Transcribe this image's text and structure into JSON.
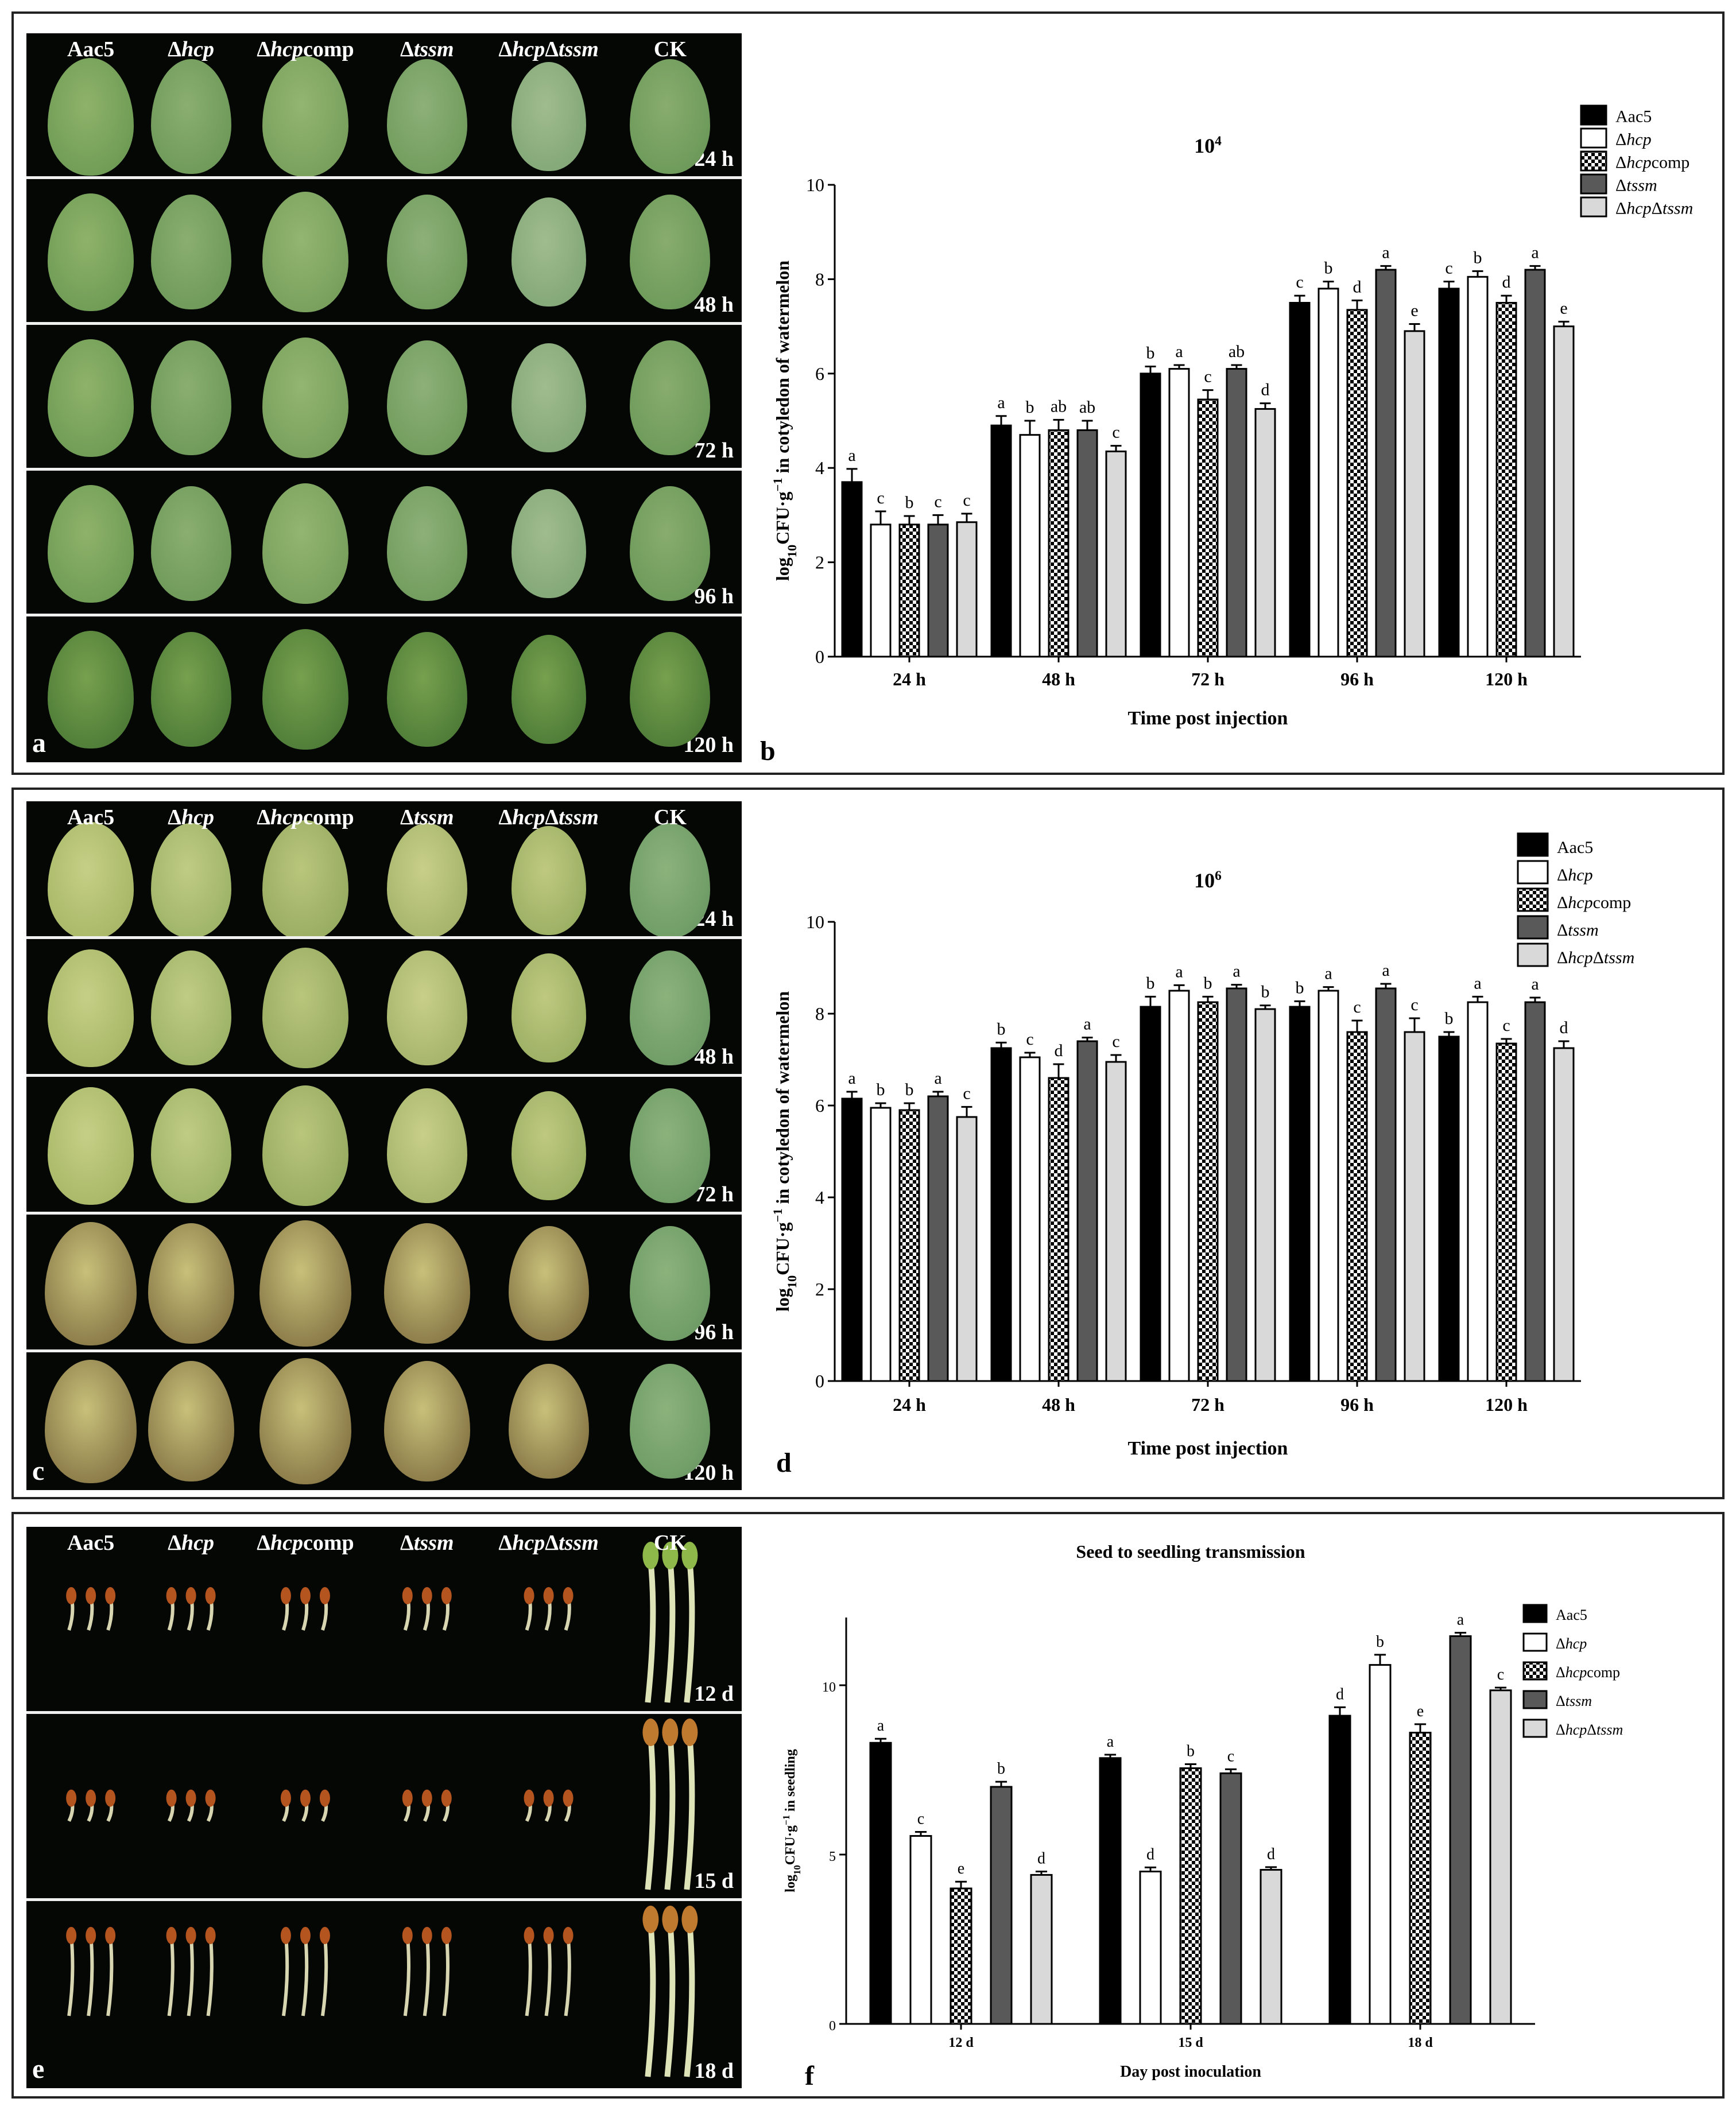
{
  "colors": {
    "aac5": "#000000",
    "hcp": "#ffffff",
    "hcpcomp": "#ffffff",
    "tssm": "#595959",
    "hcptssm": "#d9d9d9",
    "photo_bg": "#050705"
  },
  "strains": [
    {
      "prefix": "Aac5",
      "italic": "",
      "suffix": ""
    },
    {
      "prefix": "Δ",
      "italic": "hcp",
      "suffix": ""
    },
    {
      "prefix": "Δ",
      "italic": "hcp",
      "suffix": "comp"
    },
    {
      "prefix": "Δ",
      "italic": "tssm",
      "suffix": ""
    },
    {
      "prefix": "Δ",
      "italic": "hcp",
      "suffix": "Δ",
      "italic2": "tssm"
    },
    {
      "prefix": "CK",
      "italic": "",
      "suffix": ""
    }
  ],
  "panels": {
    "a": {
      "letter": "a",
      "times": [
        "24 h",
        "48 h",
        "72 h",
        "96 h",
        "120 h"
      ]
    },
    "c": {
      "letter": "c",
      "times": [
        "24 h",
        "48 h",
        "72 h",
        "96 h",
        "120 h"
      ]
    },
    "e": {
      "letter": "e",
      "times": [
        "12 d",
        "15 d",
        "18 d"
      ]
    }
  },
  "chart_data": [
    {
      "panel": "b",
      "type": "bar",
      "title": "10",
      "title_sup": "4",
      "xlabel": "Time post injection",
      "ylabel": "log10CFU·g−1 in cotyledon of watermelon",
      "ylim": [
        0,
        10
      ],
      "yticks": [
        0,
        2,
        4,
        6,
        8,
        10
      ],
      "categories": [
        "24 h",
        "48 h",
        "72 h",
        "96 h",
        "120 h"
      ],
      "series": [
        {
          "name": "Aac5",
          "values": [
            3.7,
            4.9,
            6.0,
            7.5,
            7.8
          ],
          "err": [
            0.28,
            0.2,
            0.15,
            0.15,
            0.15
          ],
          "letters": [
            "a",
            "a",
            "b",
            "c",
            "c"
          ]
        },
        {
          "name": "Δhcp",
          "values": [
            2.8,
            4.7,
            6.1,
            7.8,
            8.05
          ],
          "err": [
            0.28,
            0.3,
            0.08,
            0.15,
            0.12
          ],
          "letters": [
            "c",
            "b",
            "a",
            "b",
            "b"
          ]
        },
        {
          "name": "Δhcpcomp",
          "values": [
            2.8,
            4.8,
            5.45,
            7.35,
            7.5
          ],
          "err": [
            0.18,
            0.22,
            0.2,
            0.2,
            0.15
          ],
          "letters": [
            "b",
            "ab",
            "c",
            "d",
            "d"
          ]
        },
        {
          "name": "Δtssm",
          "values": [
            2.8,
            4.8,
            6.1,
            8.2,
            8.2
          ],
          "err": [
            0.2,
            0.2,
            0.08,
            0.08,
            0.08
          ],
          "letters": [
            "c",
            "ab",
            "ab",
            "a",
            "a"
          ]
        },
        {
          "name": "ΔhcpΔtssm",
          "values": [
            2.85,
            4.35,
            5.25,
            6.9,
            7.0
          ],
          "err": [
            0.18,
            0.12,
            0.12,
            0.15,
            0.1
          ],
          "letters": [
            "c",
            "c",
            "d",
            "e",
            "e"
          ]
        }
      ]
    },
    {
      "panel": "d",
      "type": "bar",
      "title": "10",
      "title_sup": "6",
      "xlabel": "Time post injection",
      "ylabel": "log10CFU·g−1 in cotyledon of watermelon",
      "ylim": [
        0,
        10
      ],
      "yticks": [
        0,
        2,
        4,
        6,
        8,
        10
      ],
      "categories": [
        "24 h",
        "48 h",
        "72 h",
        "96 h",
        "120 h"
      ],
      "series": [
        {
          "name": "Aac5",
          "values": [
            6.15,
            7.25,
            8.15,
            8.15,
            7.5
          ],
          "err": [
            0.15,
            0.12,
            0.22,
            0.12,
            0.1
          ],
          "letters": [
            "a",
            "b",
            "b",
            "b",
            "b"
          ]
        },
        {
          "name": "Δhcp",
          "values": [
            5.95,
            7.05,
            8.5,
            8.5,
            8.25
          ],
          "err": [
            0.1,
            0.1,
            0.12,
            0.08,
            0.12
          ],
          "letters": [
            "b",
            "c",
            "a",
            "a",
            "a"
          ]
        },
        {
          "name": "Δhcpcomp",
          "values": [
            5.9,
            6.6,
            8.25,
            7.6,
            7.35
          ],
          "err": [
            0.15,
            0.3,
            0.12,
            0.25,
            0.1
          ],
          "letters": [
            "b",
            "d",
            "b",
            "c",
            "c"
          ]
        },
        {
          "name": "Δtssm",
          "values": [
            6.2,
            7.4,
            8.55,
            8.55,
            8.25
          ],
          "err": [
            0.1,
            0.08,
            0.08,
            0.1,
            0.1
          ],
          "letters": [
            "a",
            "a",
            "a",
            "a",
            "a"
          ]
        },
        {
          "name": "ΔhcpΔtssm",
          "values": [
            5.75,
            6.95,
            8.1,
            7.6,
            7.25
          ],
          "err": [
            0.22,
            0.15,
            0.08,
            0.3,
            0.15
          ],
          "letters": [
            "c",
            "c",
            "b",
            "c",
            "d"
          ]
        }
      ]
    },
    {
      "panel": "f",
      "type": "bar",
      "title": "Seed to seedling transmission",
      "title_sup": "",
      "xlabel": "Day post inoculation",
      "ylabel": "log10CFU·g−1 in seedling",
      "ylim": [
        0,
        12
      ],
      "yticks": [
        0,
        5,
        10
      ],
      "categories": [
        "12 d",
        "15 d",
        "18 d"
      ],
      "series": [
        {
          "name": "Aac5",
          "values": [
            8.3,
            7.85,
            9.1
          ],
          "err": [
            0.12,
            0.1,
            0.25
          ],
          "letters": [
            "a",
            "a",
            "d"
          ]
        },
        {
          "name": "Δhcp",
          "values": [
            5.55,
            4.5,
            10.6
          ],
          "err": [
            0.12,
            0.12,
            0.3
          ],
          "letters": [
            "c",
            "d",
            "b"
          ]
        },
        {
          "name": "Δhcpcomp",
          "values": [
            4.0,
            7.55,
            8.6
          ],
          "err": [
            0.2,
            0.12,
            0.25
          ],
          "letters": [
            "e",
            "b",
            "e"
          ]
        },
        {
          "name": "Δtssm",
          "values": [
            7.0,
            7.4,
            11.45
          ],
          "err": [
            0.15,
            0.12,
            0.1
          ],
          "letters": [
            "b",
            "c",
            "a"
          ]
        },
        {
          "name": "ΔhcpΔtssm",
          "values": [
            4.4,
            4.55,
            9.85
          ],
          "err": [
            0.1,
            0.08,
            0.08
          ],
          "letters": [
            "d",
            "d",
            "c"
          ]
        }
      ]
    }
  ]
}
